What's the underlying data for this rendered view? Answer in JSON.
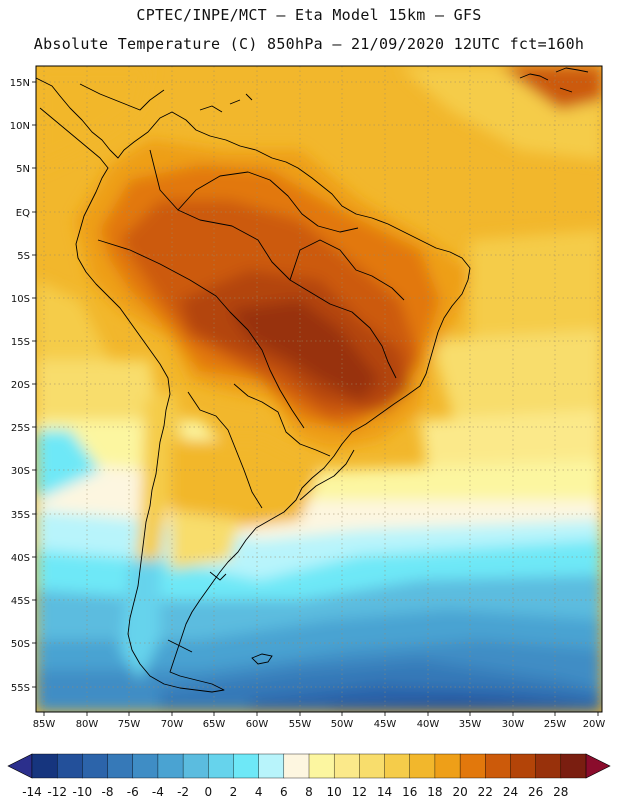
{
  "title_line1": "CPTEC/INPE/MCT  –   Eta Model 15km  –  GFS",
  "title_line2": "Absolute Temperature (C) 850hPa – 21/09/2020 12UTC fct=160h",
  "lat_labels": [
    "15N",
    "10N",
    "5N",
    "EQ",
    "5S",
    "10S",
    "15S",
    "20S",
    "25S",
    "30S",
    "35S",
    "40S",
    "45S",
    "50S",
    "55S"
  ],
  "lon_labels": [
    "85W",
    "80W",
    "75W",
    "70W",
    "65W",
    "60W",
    "55W",
    "50W",
    "45W",
    "40W",
    "35W",
    "30W",
    "25W",
    "20W"
  ],
  "colorbar": {
    "labels": [
      "-14",
      "-12",
      "-10",
      "-8",
      "-6",
      "-4",
      "-2",
      "0",
      "2",
      "4",
      "6",
      "8",
      "10",
      "12",
      "14",
      "16",
      "18",
      "20",
      "22",
      "24",
      "26",
      "28"
    ],
    "colors": [
      "#16357e",
      "#23509a",
      "#2c64aa",
      "#3679b8",
      "#3f8dc5",
      "#4aa3d2",
      "#5bbcdf",
      "#66d3ec",
      "#6ee8f7",
      "#b8f4fb",
      "#fdf6e0",
      "#fcf6a0",
      "#fbe98a",
      "#f8dd6c",
      "#f5cc4a",
      "#f2b72c",
      "#ee9f18",
      "#e2780c",
      "#cc5a0a",
      "#b34408",
      "#98310b",
      "#7a1e10"
    ],
    "low_color": "#2b2f8c",
    "high_color": "#8a0c2c"
  }
}
